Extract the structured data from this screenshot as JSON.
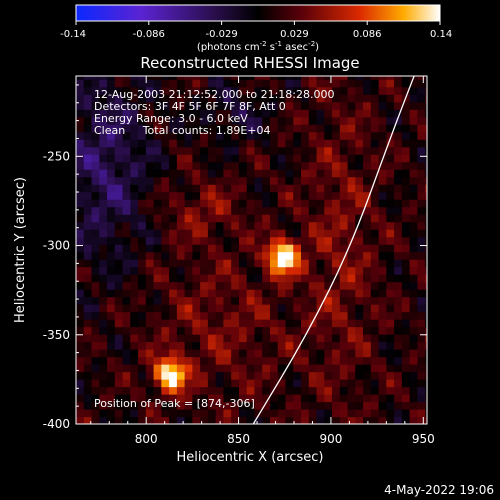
{
  "chart_data": {
    "type": "heatmap",
    "title": "Reconstructed RHESSI Image",
    "xlabel": "Heliocentric X (arcsec)",
    "ylabel": "Heliocentric Y (arcsec)",
    "xlim": [
      762,
      952
    ],
    "ylim": [
      -400,
      -205
    ],
    "x_ticks": [
      800,
      850,
      900,
      950
    ],
    "y_ticks": [
      -250,
      -300,
      -350,
      -400
    ],
    "colorbar": {
      "min": -0.14,
      "max": 0.14,
      "ticks": [
        "-0.14",
        "-0.086",
        "-0.029",
        "0.029",
        "0.086",
        "0.14"
      ],
      "label": "(photons cm",
      "label_sup1": "-2",
      "label_mid": " s",
      "label_sup2": "-1",
      "label_mid2": " asec",
      "label_sup3": "-2",
      "label_end": ")"
    },
    "annotations": {
      "line1": "12-Aug-2003 21:12:52.000 to 21:18:28.000",
      "line2": "Detectors: 3F 4F 5F 6F 7F 8F, Att 0",
      "line3": "Energy Range: 3.0 - 6.0 keV",
      "line4": "Clean     Total counts: 1.89E+04",
      "peak": "Position of Peak = [874,-306]"
    },
    "sources": [
      {
        "x": 874,
        "y": -306,
        "amp": 0.14
      },
      {
        "x": 813,
        "y": -372,
        "amp": 0.13
      }
    ],
    "limb_curve": [
      [
        858,
        -400
      ],
      [
        887,
        -350
      ],
      [
        911,
        -300
      ],
      [
        932,
        -240
      ],
      [
        945,
        -205
      ]
    ],
    "date_stamp": "4-May-2022 19:06"
  }
}
